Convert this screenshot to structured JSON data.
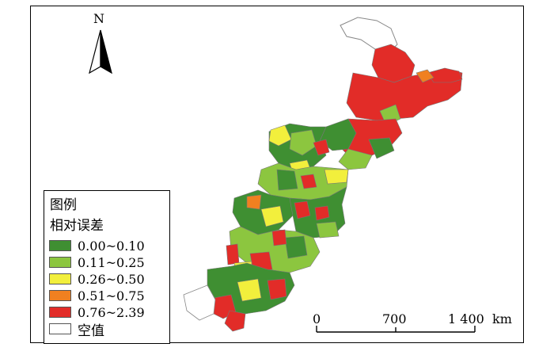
{
  "north_arrow": {
    "label": "N",
    "icon": "north-arrow-icon"
  },
  "legend": {
    "title": "图例",
    "subtitle": "相对误差",
    "items": [
      {
        "label": "0.00~0.10",
        "color": "#3f8f32"
      },
      {
        "label": "0.11~0.25",
        "color": "#8cc63f"
      },
      {
        "label": "0.26~0.50",
        "color": "#f2ef3c"
      },
      {
        "label": "0.51~0.75",
        "color": "#f08020"
      },
      {
        "label": "0.76~2.39",
        "color": "#e22c28"
      },
      {
        "label": "空值",
        "color": "#ffffff"
      }
    ]
  },
  "scale_bar": {
    "ticks": [
      "0",
      "700",
      "1 400"
    ],
    "unit": "km"
  }
}
